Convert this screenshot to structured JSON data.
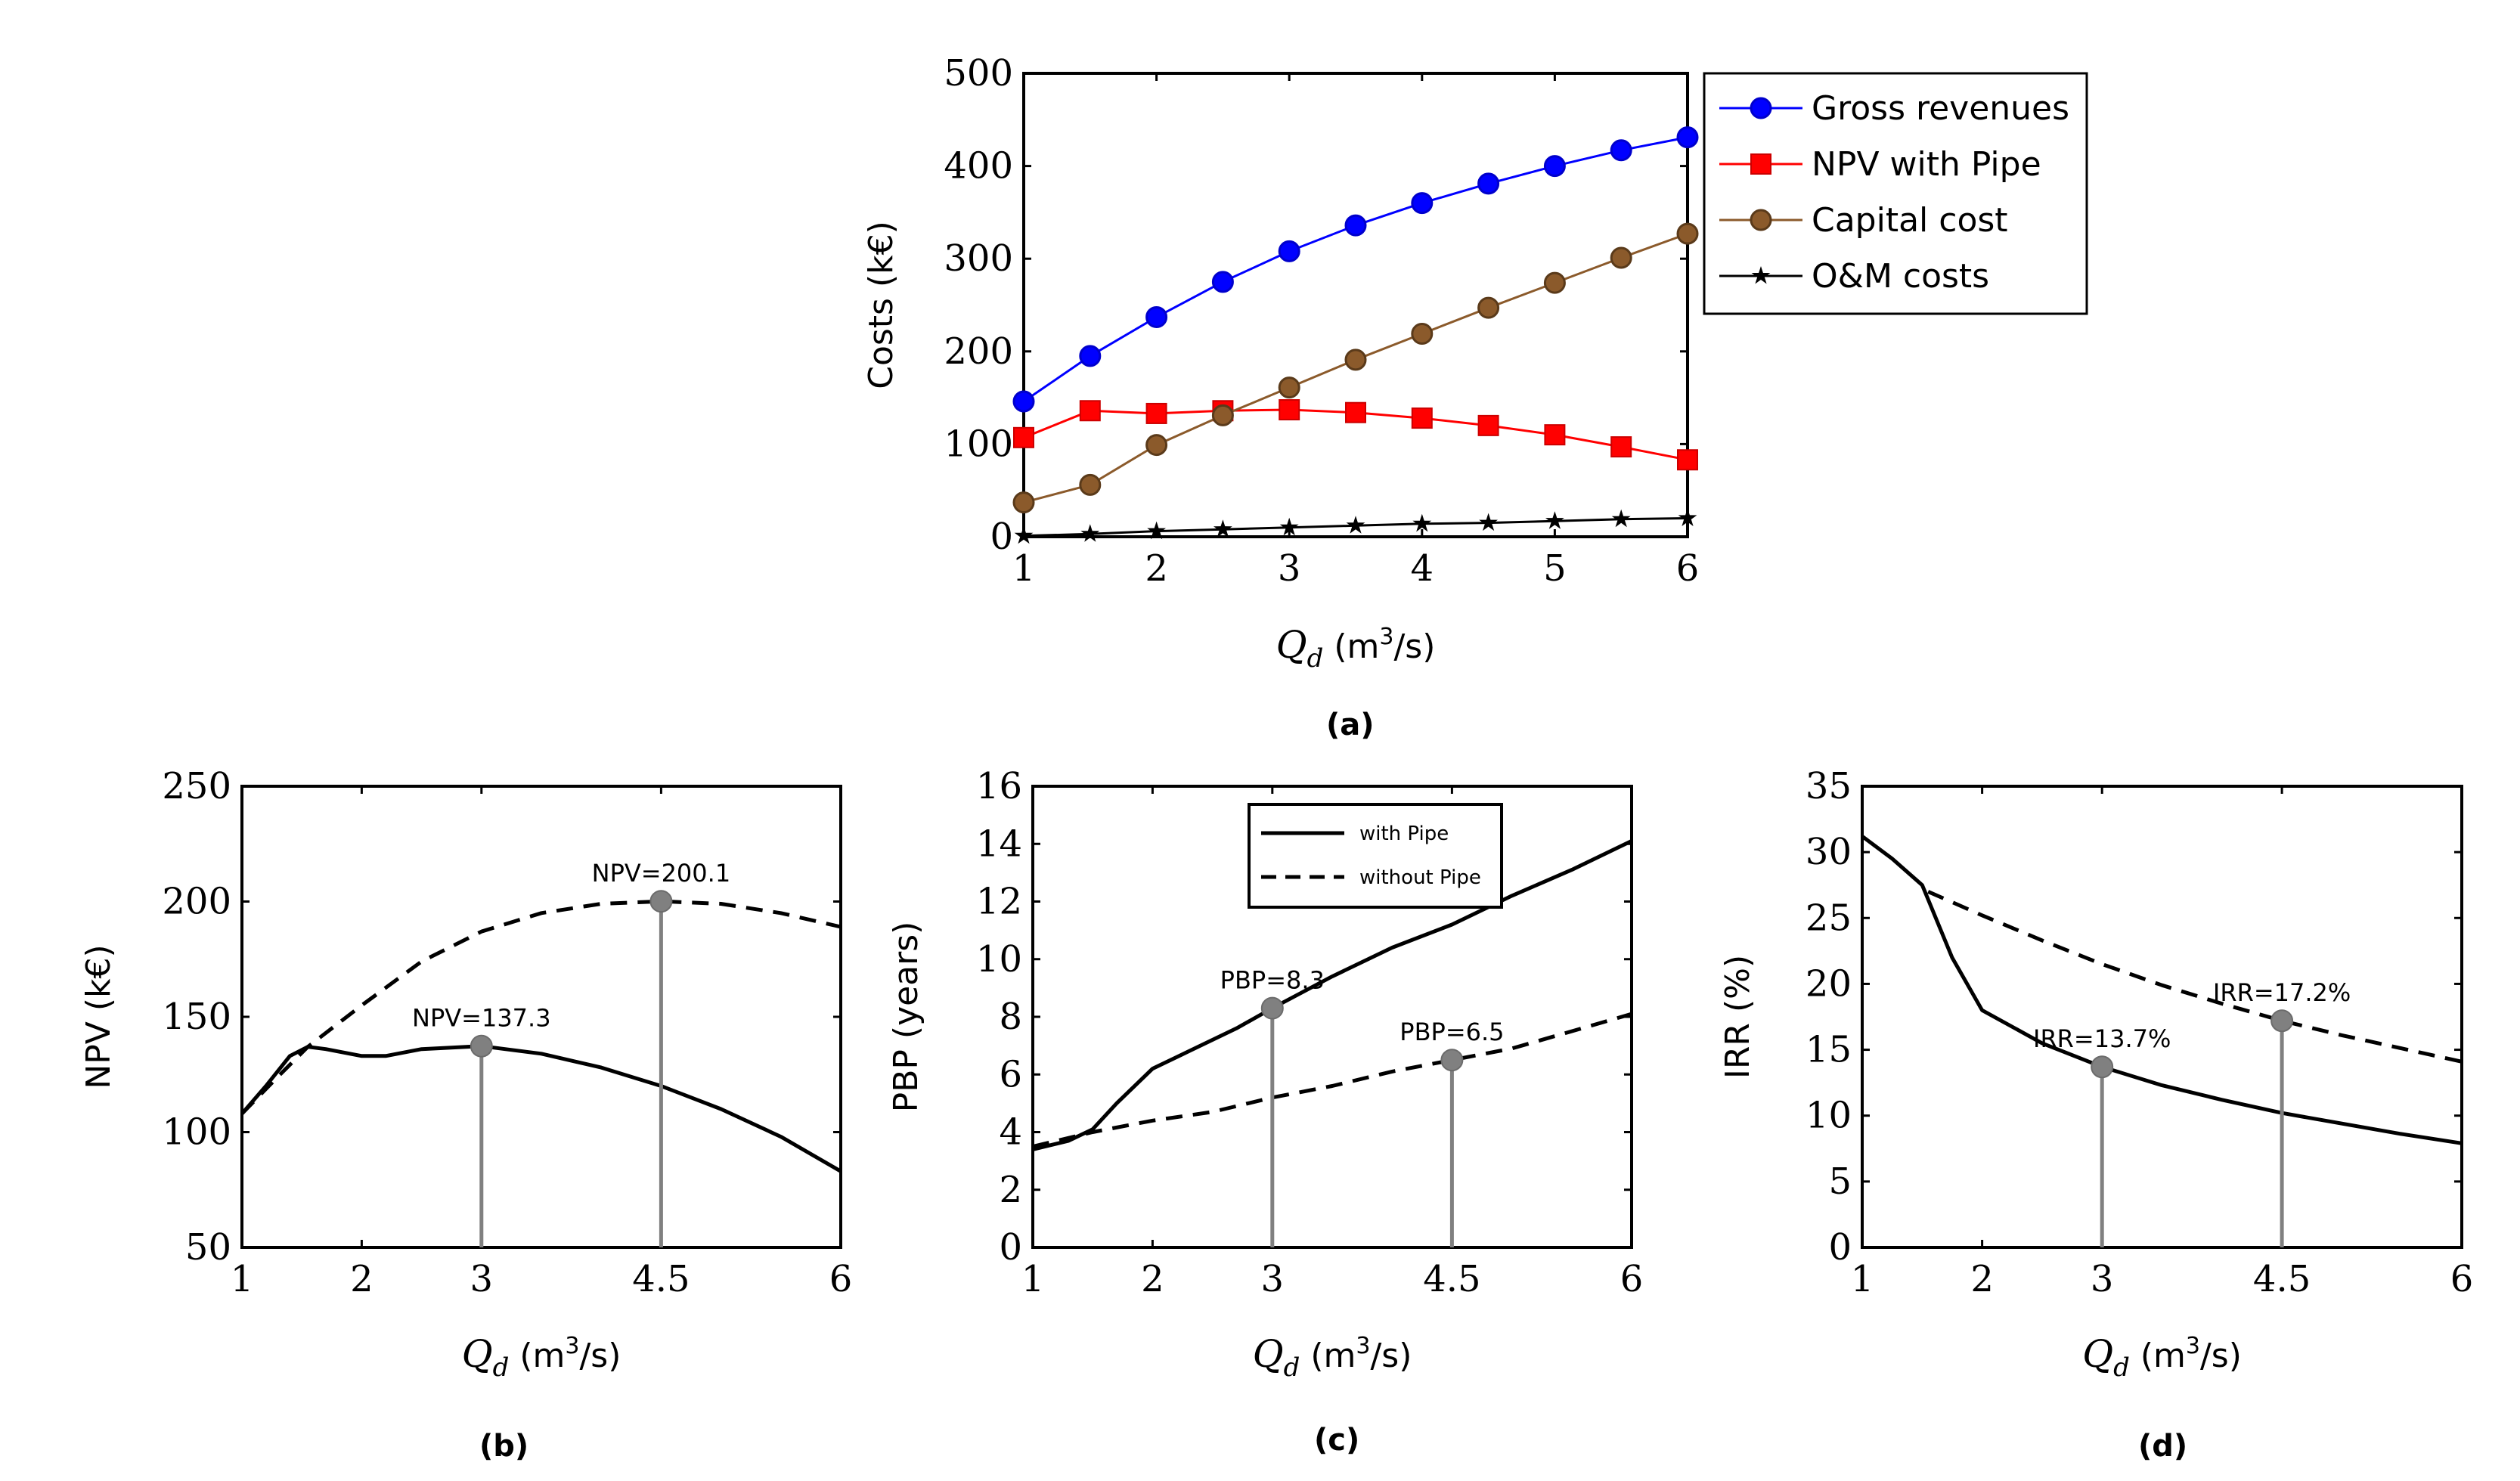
{
  "figure_labels": {
    "a": "(a)",
    "b": "(b)",
    "c": "(c)",
    "d": "(d)"
  },
  "chart_data": [
    {
      "id": "a",
      "type": "line",
      "title": "",
      "xlabel": "Qd (m3/s)",
      "xlabel_parts": {
        "var": "Q",
        "sub": "d",
        "unit_pre": " (m",
        "sup": "3",
        "unit_post": "/s)"
      },
      "ylabel": "Costs (k€)",
      "xlim": [
        1,
        6
      ],
      "ylim": [
        0,
        500
      ],
      "xticks": [
        1,
        2,
        3,
        4,
        5,
        6
      ],
      "yticks": [
        0,
        100,
        200,
        300,
        400,
        500
      ],
      "legend_position": "top-right-outside",
      "series": [
        {
          "name": "Gross revenues",
          "color": "#0000ff",
          "marker": "circle",
          "x": [
            1,
            1.5,
            2,
            2.5,
            3,
            3.5,
            4,
            4.5,
            5,
            5.5,
            6
          ],
          "y": [
            146,
            195,
            237,
            275,
            308,
            336,
            360,
            381,
            400,
            417,
            431
          ]
        },
        {
          "name": "NPV with Pipe",
          "color": "#ff0000",
          "marker": "square",
          "x": [
            1,
            1.5,
            2,
            2.5,
            3,
            3.5,
            4,
            4.5,
            5,
            5.5,
            6
          ],
          "y": [
            107,
            136,
            133,
            136,
            137,
            134,
            128,
            120,
            110,
            97,
            83
          ]
        },
        {
          "name": "Capital cost",
          "color": "#8b5a2b",
          "marker": "circle",
          "x": [
            1,
            1.5,
            2,
            2.5,
            3,
            3.5,
            4,
            4.5,
            5,
            5.5,
            6
          ],
          "y": [
            37,
            56,
            99,
            131,
            161,
            191,
            219,
            247,
            274,
            301,
            327
          ]
        },
        {
          "name": "O&M costs",
          "color": "#000000",
          "marker": "star",
          "x": [
            1,
            1.5,
            2,
            2.5,
            3,
            3.5,
            4,
            4.5,
            5,
            5.5,
            6
          ],
          "y": [
            1,
            3,
            6,
            8,
            10,
            12,
            14,
            15,
            17,
            19,
            20
          ]
        }
      ]
    },
    {
      "id": "b",
      "type": "line",
      "xlabel_parts": {
        "var": "Q",
        "sub": "d",
        "unit_pre": " (m",
        "sup": "3",
        "unit_post": "/s)"
      },
      "ylabel": "NPV (k€)",
      "xlim": [
        1,
        6
      ],
      "ylim": [
        50,
        250
      ],
      "xticks": [
        1,
        2,
        3,
        4.5,
        6
      ],
      "yticks": [
        50,
        100,
        150,
        200,
        250
      ],
      "series": [
        {
          "name": "with Pipe",
          "style": "solid",
          "x": [
            1,
            1.2,
            1.4,
            1.55,
            1.7,
            2,
            2.2,
            2.5,
            3,
            3.5,
            4,
            4.5,
            5,
            5.5,
            6
          ],
          "y": [
            108,
            120,
            133,
            137,
            136,
            133,
            133,
            136,
            137.3,
            134,
            128,
            120,
            110,
            98,
            83
          ]
        },
        {
          "name": "without Pipe",
          "style": "dashed",
          "x": [
            1,
            1.3,
            1.55,
            2,
            2.5,
            3,
            3.5,
            4,
            4.5,
            5,
            5.5,
            6
          ],
          "y": [
            108,
            124,
            137,
            155,
            174,
            187,
            195,
            199,
            200.1,
            199,
            195,
            189
          ]
        }
      ],
      "annotations": [
        {
          "x": 3,
          "y": 137.3,
          "label": "NPV=137.3"
        },
        {
          "x": 4.5,
          "y": 200.1,
          "label": "NPV=200.1"
        }
      ]
    },
    {
      "id": "c",
      "type": "line",
      "xlabel_parts": {
        "var": "Q",
        "sub": "d",
        "unit_pre": " (m",
        "sup": "3",
        "unit_post": "/s)"
      },
      "ylabel": "PBP (years)",
      "xlim": [
        1,
        6
      ],
      "ylim": [
        0,
        16
      ],
      "xticks": [
        1,
        2,
        3,
        4.5,
        6
      ],
      "yticks": [
        0,
        2,
        4,
        6,
        8,
        10,
        12,
        14,
        16
      ],
      "legend_position": "top-center",
      "series": [
        {
          "name": "with Pipe",
          "style": "solid",
          "x": [
            1,
            1.3,
            1.5,
            1.7,
            2,
            2.3,
            2.7,
            3,
            3.5,
            4,
            4.5,
            5,
            5.5,
            6
          ],
          "y": [
            3.4,
            3.7,
            4.1,
            5,
            6.2,
            6.8,
            7.6,
            8.3,
            9.4,
            10.4,
            11.2,
            12.2,
            13.1,
            14.1
          ]
        },
        {
          "name": "without Pipe",
          "style": "dashed",
          "x": [
            1,
            1.5,
            2,
            2.5,
            3,
            3.5,
            4,
            4.5,
            5,
            5.5,
            6
          ],
          "y": [
            3.5,
            4.0,
            4.4,
            4.7,
            5.2,
            5.6,
            6.1,
            6.5,
            6.9,
            7.5,
            8.1
          ]
        }
      ],
      "annotations": [
        {
          "x": 3,
          "y": 8.3,
          "label": "PBP=8.3"
        },
        {
          "x": 4.5,
          "y": 6.5,
          "label": "PBP=6.5"
        }
      ]
    },
    {
      "id": "d",
      "type": "line",
      "xlabel_parts": {
        "var": "Q",
        "sub": "d",
        "unit_pre": " (m",
        "sup": "3",
        "unit_post": "/s)"
      },
      "ylabel": "IRR (%)",
      "xlim": [
        1,
        6
      ],
      "ylim": [
        0,
        35
      ],
      "xticks": [
        1,
        2,
        3,
        4.5,
        6
      ],
      "yticks": [
        0,
        5,
        10,
        15,
        20,
        25,
        30,
        35
      ],
      "series": [
        {
          "name": "with Pipe",
          "style": "solid",
          "x": [
            1,
            1.25,
            1.5,
            1.75,
            2,
            2.5,
            3,
            3.5,
            4,
            4.5,
            5,
            5.5,
            6
          ],
          "y": [
            31.2,
            29.5,
            27.5,
            22,
            18,
            15.5,
            13.7,
            12.3,
            11.2,
            10.2,
            9.4,
            8.6,
            7.9
          ]
        },
        {
          "name": "without Pipe",
          "style": "dashed",
          "x": [
            1.55,
            2,
            2.5,
            3,
            3.5,
            4,
            4.5,
            5,
            5.5,
            6
          ],
          "y": [
            27,
            25.2,
            23.3,
            21.5,
            19.9,
            18.5,
            17.2,
            16.1,
            15.1,
            14.1
          ]
        }
      ],
      "annotations": [
        {
          "x": 3,
          "y": 13.7,
          "label": "IRR=13.7%"
        },
        {
          "x": 4.5,
          "y": 17.2,
          "label": "IRR=17.2%"
        }
      ]
    }
  ]
}
